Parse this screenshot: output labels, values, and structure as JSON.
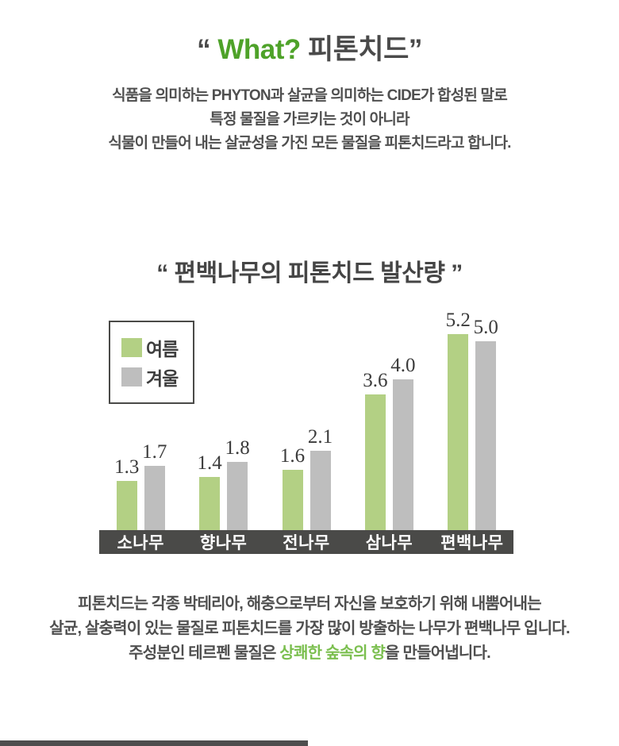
{
  "title": {
    "quote_open": "“ ",
    "highlight": "What? ",
    "rest": "피톤치드",
    "quote_close": "”"
  },
  "intro": {
    "line1": "식품을 의미하는 PHYTON과 살균을 의미하는 CIDE가 합성된 말로",
    "line2": "특정 물질을 가르키는 것이 아니라",
    "line3": "식물이 만들어 내는 살균성을 가진 모든 물질을 피톤치드라고 합니다."
  },
  "chart": {
    "title": "“ 편백나무의 피톤치드 발산량 ”",
    "legend": [
      {
        "label": "여름",
        "color": "#b3d084"
      },
      {
        "label": "겨울",
        "color": "#bebebe"
      }
    ]
  },
  "chart_data": {
    "type": "bar",
    "title": "편백나무의 피톤치드 발산량",
    "categories": [
      "소나무",
      "향나무",
      "전나무",
      "삼나무",
      "편백나무"
    ],
    "series": [
      {
        "name": "여름",
        "color": "#b3d084",
        "values": [
          1.3,
          1.4,
          1.6,
          3.6,
          5.2
        ]
      },
      {
        "name": "겨울",
        "color": "#bebebe",
        "values": [
          1.7,
          1.8,
          2.1,
          4.0,
          5.0
        ]
      }
    ],
    "xlabel": "",
    "ylabel": "",
    "ylim": [
      0,
      5.5
    ],
    "grid": false,
    "value_labels": true,
    "legend_position": "top-left",
    "axis_band_color": "#4a4a48",
    "axis_band_text_color": "#ffffff"
  },
  "outro": {
    "line1": "피톤치드는 각종 박테리아, 해충으로부터 자신을 보호하기 위해 내뿜어내는",
    "line2": "살균, 살충력이 있는 물질로 피톤치드를 가장 많이 방출하는 나무가 편백나무 입니다.",
    "line3_pre": "주성분인 테르펜 물질은 ",
    "line3_highlight": "상쾌한 숲속의 향",
    "line3_post": "을 만들어냅니다."
  },
  "colors": {
    "accent_green": "#4ea229",
    "light_green": "#7bbf4f",
    "bar_green": "#b3d084",
    "bar_gray": "#bebebe",
    "band_dark": "#4a4a48",
    "text_dark": "#4a4a4a"
  }
}
